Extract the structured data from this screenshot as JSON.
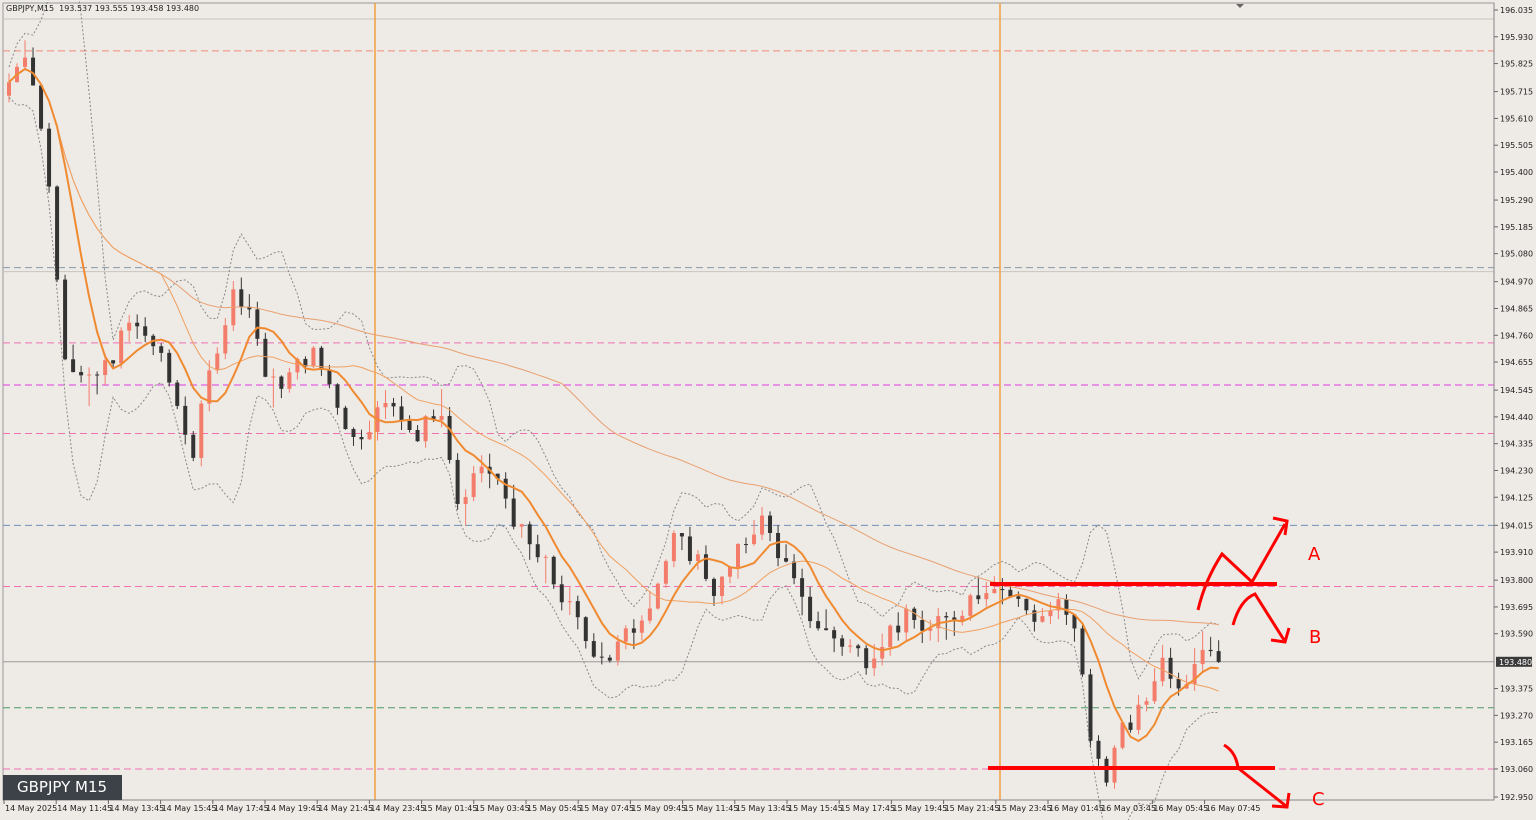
{
  "window": {
    "symbol": "GBPJPY,M15",
    "ohlc": "193.537 193.555 193.458 193.480",
    "label": "GBPJPY M15"
  },
  "chart_data": {
    "type": "candlestick",
    "title": "GBPJPY M15",
    "y_ticks": [
      "196.035",
      "195.930",
      "195.825",
      "195.715",
      "195.610",
      "195.505",
      "195.400",
      "195.290",
      "195.185",
      "195.080",
      "194.970",
      "194.865",
      "194.760",
      "194.655",
      "194.545",
      "194.440",
      "194.335",
      "194.230",
      "194.125",
      "194.015",
      "193.910",
      "193.800",
      "193.695",
      "193.590",
      "193.375",
      "193.270",
      "193.165",
      "193.060",
      "192.950"
    ],
    "ylim": [
      192.92,
      196.06
    ],
    "x_ticks": [
      "14 May 2025",
      "14 May 11:45",
      "14 May 13:45",
      "14 May 15:45",
      "14 May 17:45",
      "14 May 19:45",
      "14 May 21:45",
      "14 May 23:45",
      "15 May 01:45",
      "15 May 03:45",
      "15 May 05:45",
      "15 May 07:45",
      "15 May 09:45",
      "15 May 11:45",
      "15 May 13:45",
      "15 May 15:45",
      "15 May 17:45",
      "15 May 19:45",
      "15 May 21:45",
      "15 May 23:45",
      "16 May 01:45",
      "16 May 03:45",
      "16 May 05:45",
      "16 May 07:45"
    ],
    "current_price": "193.480",
    "horizontal_levels": [
      {
        "price": 195.875,
        "color": "#f08a78"
      },
      {
        "price": 195.025,
        "color": "#8a9aaa"
      },
      {
        "price": 194.73,
        "color": "#f070b0"
      },
      {
        "price": 194.565,
        "color": "#e03ae0"
      },
      {
        "price": 194.375,
        "color": "#f070b0"
      },
      {
        "price": 194.015,
        "color": "#7090b8"
      },
      {
        "price": 193.775,
        "color": "#f070b0"
      },
      {
        "price": 193.3,
        "color": "#4a9a6a"
      },
      {
        "price": 193.06,
        "color": "#f070b0"
      }
    ],
    "vertical_lines": [
      "14 May 23:00",
      "15 May 23:00"
    ],
    "close_path": [
      [
        0,
        195.7
      ],
      [
        8,
        195.9
      ],
      [
        16,
        195.55
      ],
      [
        24,
        194.7
      ],
      [
        32,
        194.55
      ],
      [
        40,
        194.65
      ],
      [
        48,
        194.8
      ],
      [
        56,
        194.75
      ],
      [
        64,
        194.55
      ],
      [
        72,
        194.3
      ],
      [
        80,
        194.7
      ],
      [
        88,
        194.95
      ],
      [
        94,
        194.85
      ],
      [
        100,
        194.55
      ],
      [
        108,
        194.6
      ],
      [
        116,
        194.7
      ],
      [
        124,
        194.55
      ],
      [
        132,
        194.35
      ],
      [
        140,
        194.45
      ],
      [
        148,
        194.5
      ],
      [
        156,
        194.35
      ],
      [
        164,
        194.5
      ],
      [
        172,
        194.05
      ],
      [
        180,
        194.25
      ],
      [
        188,
        194.15
      ],
      [
        196,
        193.95
      ],
      [
        204,
        193.85
      ],
      [
        212,
        193.7
      ],
      [
        220,
        193.55
      ],
      [
        228,
        193.5
      ],
      [
        236,
        193.6
      ],
      [
        244,
        193.75
      ],
      [
        252,
        193.95
      ],
      [
        260,
        193.9
      ],
      [
        268,
        193.75
      ],
      [
        276,
        193.9
      ],
      [
        284,
        194.05
      ],
      [
        292,
        193.9
      ],
      [
        300,
        193.7
      ],
      [
        308,
        193.6
      ],
      [
        316,
        193.55
      ],
      [
        324,
        193.5
      ],
      [
        332,
        193.6
      ],
      [
        340,
        193.65
      ],
      [
        348,
        193.6
      ],
      [
        356,
        193.65
      ],
      [
        364,
        193.75
      ],
      [
        372,
        193.8
      ],
      [
        380,
        193.72
      ],
      [
        388,
        193.65
      ],
      [
        396,
        193.7
      ],
      [
        404,
        193.55
      ],
      [
        408,
        193.15
      ],
      [
        414,
        193.05
      ],
      [
        420,
        193.2
      ],
      [
        428,
        193.3
      ],
      [
        434,
        193.5
      ],
      [
        442,
        193.4
      ],
      [
        450,
        193.55
      ],
      [
        458,
        193.5
      ]
    ],
    "annotations": [
      "A",
      "B",
      "C"
    ],
    "annotation_color": "#ff0000"
  }
}
